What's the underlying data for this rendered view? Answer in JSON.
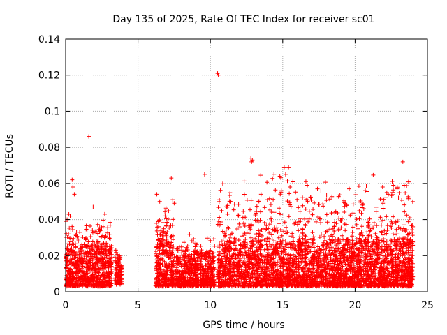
{
  "chart_data": {
    "type": "scatter",
    "title": "Day 135 of 2025, Rate Of TEC Index for receiver sc01",
    "xlabel": "GPS time / hours",
    "ylabel": "ROTI / TECUs",
    "xlim": [
      0,
      25
    ],
    "ylim": [
      0,
      0.14
    ],
    "xticks": [
      0,
      5,
      10,
      15,
      20,
      25
    ],
    "xtick_labels": [
      "0",
      "5",
      "10",
      "15",
      "20",
      "25"
    ],
    "yticks": [
      0,
      0.02,
      0.04,
      0.06,
      0.08,
      0.1,
      0.12,
      0.14
    ],
    "ytick_labels": [
      "0",
      "0.02",
      "0.04",
      "0.06",
      "0.08",
      "0.1",
      "0.12",
      "0.14"
    ],
    "grid": true,
    "marker": "+",
    "color": "#ff0000",
    "segments": [
      {
        "x_start": 0.0,
        "x_end": 3.2,
        "y_low": 0.003,
        "y_high": 0.025,
        "spike_max": 0.045
      },
      {
        "x_start": 3.4,
        "x_end": 3.9,
        "y_low": 0.004,
        "y_high": 0.018,
        "spike_max": 0.025
      },
      {
        "x_start": 6.2,
        "x_end": 7.5,
        "y_low": 0.003,
        "y_high": 0.028,
        "spike_max": 0.052
      },
      {
        "x_start": 7.6,
        "x_end": 9.2,
        "y_low": 0.003,
        "y_high": 0.02,
        "spike_max": 0.035
      },
      {
        "x_start": 9.3,
        "x_end": 10.3,
        "y_low": 0.003,
        "y_high": 0.02,
        "spike_max": 0.03
      },
      {
        "x_start": 10.5,
        "x_end": 24.0,
        "y_low": 0.003,
        "y_high": 0.028,
        "spike_max": 0.068
      }
    ],
    "outliers": [
      {
        "x": 0.1,
        "y": 0.04
      },
      {
        "x": 0.45,
        "y": 0.062
      },
      {
        "x": 0.5,
        "y": 0.058
      },
      {
        "x": 0.6,
        "y": 0.054
      },
      {
        "x": 1.6,
        "y": 0.086
      },
      {
        "x": 1.9,
        "y": 0.047
      },
      {
        "x": 2.7,
        "y": 0.043
      },
      {
        "x": 6.3,
        "y": 0.054
      },
      {
        "x": 6.5,
        "y": 0.05
      },
      {
        "x": 7.4,
        "y": 0.051
      },
      {
        "x": 7.5,
        "y": 0.049
      },
      {
        "x": 7.3,
        "y": 0.063
      },
      {
        "x": 9.6,
        "y": 0.065
      },
      {
        "x": 10.5,
        "y": 0.121
      },
      {
        "x": 10.55,
        "y": 0.12
      },
      {
        "x": 12.8,
        "y": 0.074
      },
      {
        "x": 12.85,
        "y": 0.072
      },
      {
        "x": 12.9,
        "y": 0.073
      },
      {
        "x": 13.3,
        "y": 0.05
      },
      {
        "x": 14.8,
        "y": 0.064
      },
      {
        "x": 14.9,
        "y": 0.056
      },
      {
        "x": 15.1,
        "y": 0.069
      },
      {
        "x": 15.2,
        "y": 0.065
      },
      {
        "x": 15.4,
        "y": 0.069
      },
      {
        "x": 15.5,
        "y": 0.058
      },
      {
        "x": 16.6,
        "y": 0.061
      },
      {
        "x": 16.7,
        "y": 0.059
      },
      {
        "x": 17.4,
        "y": 0.057
      },
      {
        "x": 19.4,
        "y": 0.048
      },
      {
        "x": 20.6,
        "y": 0.046
      },
      {
        "x": 21.9,
        "y": 0.058
      },
      {
        "x": 22.3,
        "y": 0.054
      },
      {
        "x": 22.6,
        "y": 0.055
      },
      {
        "x": 22.9,
        "y": 0.057
      },
      {
        "x": 23.0,
        "y": 0.052
      },
      {
        "x": 23.3,
        "y": 0.072
      },
      {
        "x": 23.4,
        "y": 0.059
      }
    ]
  }
}
